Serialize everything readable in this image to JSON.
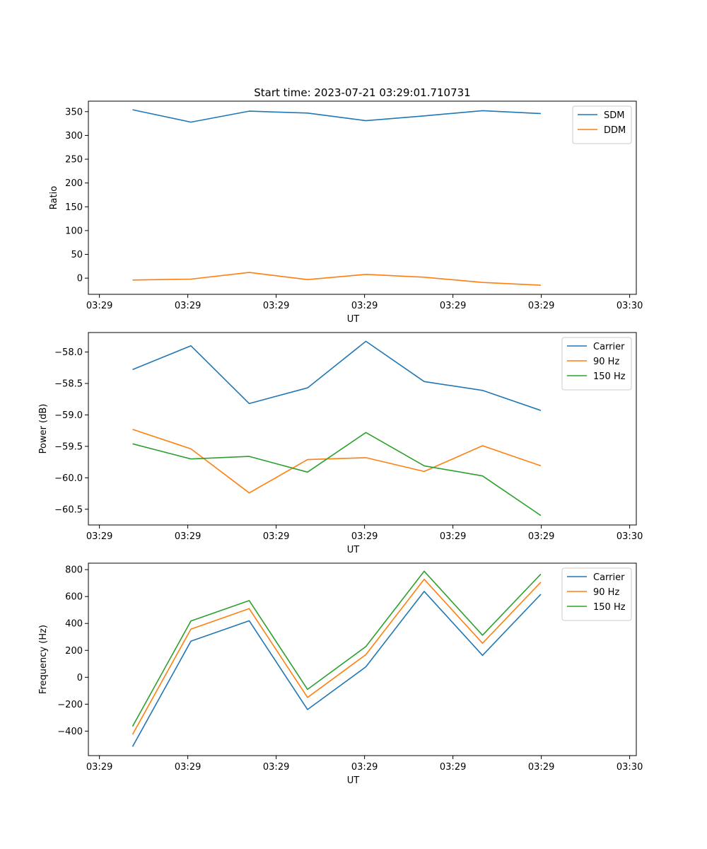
{
  "figure": {
    "title": "Start time: 2023-07-21 03:29:01.710731"
  },
  "chart_data": [
    {
      "type": "line",
      "xlabel": "UT",
      "ylabel": "Ratio",
      "x": [
        0.5,
        1.16,
        1.82,
        2.48,
        3.14,
        3.8,
        4.46,
        5.12
      ],
      "xlim": [
        0,
        6.2
      ],
      "x_ticks": [
        0.125,
        1.125,
        2.125,
        3.125,
        4.125,
        5.125,
        6.125
      ],
      "x_tick_labels": [
        "03:29",
        "03:29",
        "03:29",
        "03:29",
        "03:29",
        "03:29",
        "03:30"
      ],
      "ylim": [
        -34,
        372
      ],
      "y_ticks": [
        0,
        50,
        100,
        150,
        200,
        250,
        300,
        350
      ],
      "y_tick_labels": [
        "0",
        "50",
        "100",
        "150",
        "200",
        "250",
        "300",
        "350"
      ],
      "legend_position": "top-right",
      "series": [
        {
          "name": "SDM",
          "color": "#1f77b4",
          "values": [
            354,
            328,
            351,
            347,
            331,
            341,
            352,
            346
          ]
        },
        {
          "name": "DDM",
          "color": "#ff7f0e",
          "values": [
            -4,
            -2,
            12,
            -3,
            8,
            2,
            -9,
            -15
          ]
        }
      ]
    },
    {
      "type": "line",
      "xlabel": "UT",
      "ylabel": "Power (dB)",
      "x": [
        0.5,
        1.16,
        1.82,
        2.48,
        3.14,
        3.8,
        4.46,
        5.12
      ],
      "xlim": [
        0,
        6.2
      ],
      "x_ticks": [
        0.125,
        1.125,
        2.125,
        3.125,
        4.125,
        5.125,
        6.125
      ],
      "x_tick_labels": [
        "03:29",
        "03:29",
        "03:29",
        "03:29",
        "03:29",
        "03:29",
        "03:30"
      ],
      "ylim": [
        -60.75,
        -57.69
      ],
      "y_ticks": [
        -58.0,
        -58.5,
        -59.0,
        -59.5,
        -60.0,
        -60.5
      ],
      "y_tick_labels": [
        "−58.0",
        "−58.5",
        "−59.0",
        "−59.5",
        "−60.0",
        "−60.5"
      ],
      "legend_position": "top-right",
      "series": [
        {
          "name": "Carrier",
          "color": "#1f77b4",
          "values": [
            -58.28,
            -57.9,
            -58.82,
            -58.57,
            -57.83,
            -58.47,
            -58.61,
            -58.93
          ]
        },
        {
          "name": "90 Hz",
          "color": "#ff7f0e",
          "values": [
            -59.23,
            -59.54,
            -60.24,
            -59.71,
            -59.68,
            -59.9,
            -59.49,
            -59.81
          ]
        },
        {
          "name": "150 Hz",
          "color": "#2ca02c",
          "values": [
            -59.46,
            -59.7,
            -59.66,
            -59.91,
            -59.28,
            -59.81,
            -59.97,
            -60.6
          ]
        }
      ]
    },
    {
      "type": "line",
      "xlabel": "UT",
      "ylabel": "Frequency (Hz)",
      "x": [
        0.5,
        1.16,
        1.82,
        2.48,
        3.14,
        3.8,
        4.46,
        5.12
      ],
      "xlim": [
        0,
        6.2
      ],
      "x_ticks": [
        0.125,
        1.125,
        2.125,
        3.125,
        4.125,
        5.125,
        6.125
      ],
      "x_tick_labels": [
        "03:29",
        "03:29",
        "03:29",
        "03:29",
        "03:29",
        "03:29",
        "03:30"
      ],
      "ylim": [
        -582,
        848
      ],
      "y_ticks": [
        -400,
        -200,
        0,
        200,
        400,
        600,
        800
      ],
      "y_tick_labels": [
        "−400",
        "−200",
        "0",
        "200",
        "400",
        "600",
        "800"
      ],
      "legend_position": "top-right",
      "series": [
        {
          "name": "Carrier",
          "color": "#1f77b4",
          "values": [
            -515,
            268,
            420,
            -240,
            78,
            638,
            163,
            617
          ]
        },
        {
          "name": "90 Hz",
          "color": "#ff7f0e",
          "values": [
            -425,
            358,
            510,
            -150,
            168,
            728,
            253,
            707
          ]
        },
        {
          "name": "150 Hz",
          "color": "#2ca02c",
          "values": [
            -365,
            418,
            570,
            -90,
            228,
            788,
            313,
            767
          ]
        }
      ]
    }
  ]
}
